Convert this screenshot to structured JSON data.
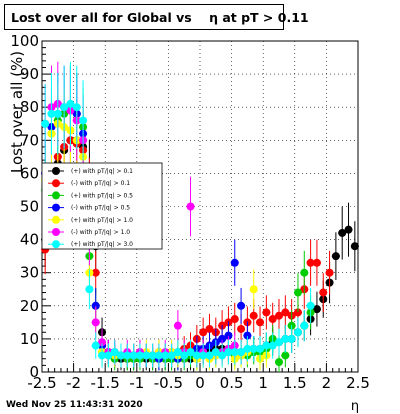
{
  "chart_data": {
    "type": "scatter",
    "title": "Lost over all for Global vs    η at pT > 0.11",
    "ylabel": "Lost over all (%)",
    "xlabel": "η",
    "xlim": [
      -2.5,
      2.5
    ],
    "ylim": [
      0,
      100
    ],
    "x_ticks": [
      "-2.5",
      "-2",
      "-1.5",
      "-1",
      "-0.5",
      "0",
      "0.5",
      "1",
      "1.5",
      "2",
      "2.5"
    ],
    "y_ticks": [
      "0",
      "10",
      "20",
      "30",
      "40",
      "50",
      "60",
      "70",
      "80",
      "90",
      "100"
    ],
    "grid": "on",
    "legend_position": "left-middle",
    "timestamp": "Wed Nov 25 11:43:31 2020",
    "series": [
      {
        "name": "(+) with pT/|q| > 0.1",
        "color": "#000000",
        "x": [
          -2.45,
          -2.35,
          -2.25,
          -2.15,
          -2.05,
          -1.95,
          -1.85,
          -1.75,
          -1.65,
          -1.55,
          -1.45,
          -1.35,
          -1.25,
          -1.15,
          -1.05,
          -0.95,
          -0.85,
          -0.75,
          -0.65,
          -0.55,
          -0.45,
          -0.35,
          -0.25,
          -0.15,
          -0.05,
          0.05,
          0.15,
          0.25,
          0.35,
          0.45,
          0.55,
          0.65,
          0.75,
          0.85,
          0.95,
          1.05,
          1.15,
          1.25,
          1.35,
          1.45,
          1.55,
          1.65,
          1.75,
          1.85,
          1.95,
          2.05,
          2.15,
          2.25,
          2.35,
          2.45
        ],
        "y": [
          40,
          56,
          63,
          67,
          70,
          70,
          68,
          60,
          38,
          12,
          6,
          5,
          4,
          4,
          4,
          5,
          4,
          4,
          4,
          4,
          4,
          4,
          5,
          4,
          5,
          6,
          6,
          7,
          7,
          7,
          6,
          6,
          6,
          7,
          7,
          8,
          9,
          9,
          10,
          10,
          12,
          14,
          16,
          19,
          22,
          27,
          35,
          42,
          43,
          38
        ]
      },
      {
        "name": "(-) with pT/|q| > 0.1",
        "color": "#ff0000",
        "x": [
          -2.45,
          -2.35,
          -2.25,
          -2.15,
          -2.05,
          -1.95,
          -1.85,
          -1.75,
          -1.65,
          -1.55,
          -1.45,
          -1.35,
          -1.25,
          -1.15,
          -1.05,
          -0.95,
          -0.85,
          -0.75,
          -0.65,
          -0.55,
          -0.45,
          -0.35,
          -0.25,
          -0.15,
          -0.05,
          0.05,
          0.15,
          0.25,
          0.35,
          0.45,
          0.55,
          0.65,
          0.75,
          0.85,
          0.95,
          1.05,
          1.15,
          1.25,
          1.35,
          1.45,
          1.55,
          1.65,
          1.75,
          1.85,
          1.95,
          2.05
        ],
        "y": [
          37,
          60,
          65,
          68,
          70,
          69,
          67,
          55,
          30,
          8,
          6,
          6,
          5,
          5,
          5,
          6,
          5,
          5,
          6,
          5,
          6,
          6,
          7,
          8,
          10,
          12,
          13,
          12,
          14,
          15,
          16,
          13,
          15,
          17,
          15,
          18,
          16,
          17,
          18,
          17,
          18,
          25,
          33,
          33,
          24,
          30
        ]
      },
      {
        "name": "(+) with pT/|q| > 0.5",
        "color": "#00cc00",
        "x": [
          -2.45,
          -2.35,
          -2.25,
          -2.15,
          -2.05,
          -1.95,
          -1.85,
          -1.75,
          -1.65,
          -1.55,
          -1.45,
          -1.35,
          -1.25,
          -1.15,
          -1.05,
          -0.95,
          -0.85,
          -0.75,
          -0.65,
          -0.55,
          -0.45,
          -0.35,
          -0.25,
          -0.15,
          -0.05,
          0.05,
          0.15,
          0.25,
          0.35,
          0.45,
          0.55,
          0.65,
          0.75,
          0.85,
          0.95,
          1.05,
          1.15,
          1.25,
          1.35,
          1.45,
          1.55,
          1.65,
          1.75
        ],
        "y": [
          55,
          72,
          76,
          78,
          80,
          78,
          74,
          35,
          20,
          6,
          5,
          4,
          5,
          4,
          4,
          4,
          5,
          4,
          4,
          4,
          4,
          4,
          4,
          5,
          4,
          6,
          5,
          5,
          6,
          6,
          5,
          5,
          5,
          6,
          6,
          7,
          10,
          3,
          5,
          14,
          24,
          30,
          18
        ]
      },
      {
        "name": "(-) with pT/|q| > 0.5",
        "color": "#0000ff",
        "x": [
          -2.45,
          -2.35,
          -2.25,
          -2.15,
          -2.05,
          -1.95,
          -1.85,
          -1.75,
          -1.65,
          -1.55,
          -1.45,
          -1.35,
          -1.25,
          -1.15,
          -1.05,
          -0.95,
          -0.85,
          -0.75,
          -0.65,
          -0.55,
          -0.45,
          -0.35,
          -0.25,
          -0.15,
          -0.05,
          0.05,
          0.15,
          0.25,
          0.35,
          0.45,
          0.55,
          0.65,
          0.75
        ],
        "y": [
          60,
          74,
          78,
          80,
          80,
          78,
          72,
          45,
          20,
          8,
          6,
          5,
          5,
          5,
          5,
          5,
          5,
          5,
          4,
          5,
          5,
          4,
          5,
          6,
          7,
          7,
          8,
          9,
          10,
          11,
          33,
          20,
          11
        ]
      },
      {
        "name": "(+) with pT/|q| > 1.0",
        "color": "#ffff00",
        "x": [
          -2.45,
          -2.35,
          -2.25,
          -2.15,
          -2.05,
          -1.95,
          -1.85,
          -1.75,
          -1.65,
          -1.55,
          -1.45,
          -1.35,
          -1.25,
          -1.15,
          -1.05,
          -0.95,
          -0.85,
          -0.75,
          -0.65,
          -0.55,
          -0.45,
          -0.35,
          -0.25,
          -0.15,
          -0.05,
          0.05,
          0.15,
          0.25,
          0.35,
          0.45,
          0.55,
          0.65,
          0.75,
          0.85,
          0.95,
          1.05
        ],
        "y": [
          58,
          72,
          75,
          74,
          73,
          70,
          65,
          30,
          15,
          6,
          5,
          5,
          5,
          5,
          5,
          5,
          6,
          5,
          6,
          5,
          6,
          5,
          5,
          6,
          4,
          5,
          4,
          5,
          5,
          6,
          4,
          5,
          6,
          25,
          4,
          5
        ]
      },
      {
        "name": "(-) with pT/|q| > 1.0",
        "color": "#ff00ff",
        "x": [
          -2.45,
          -2.35,
          -2.25,
          -2.15,
          -2.05,
          -1.95,
          -1.85,
          -1.75,
          -1.65,
          -1.55,
          -1.45,
          -1.35,
          -1.25,
          -1.15,
          -1.05,
          -0.95,
          -0.85,
          -0.75,
          -0.65,
          -0.55,
          -0.45,
          -0.35,
          -0.25,
          -0.15,
          -0.05,
          0.05,
          0.15,
          0.25,
          0.35,
          0.45,
          0.55,
          0.65
        ],
        "y": [
          75,
          80,
          81,
          80,
          79,
          76,
          70,
          40,
          15,
          9,
          6,
          6,
          5,
          6,
          5,
          6,
          5,
          5,
          5,
          6,
          5,
          14,
          6,
          50,
          5,
          6,
          5,
          6,
          6,
          7,
          8,
          6
        ]
      },
      {
        "name": "(+) with pT/|q| > 3.0",
        "color": "#00ffff",
        "x": [
          -2.45,
          -2.35,
          -2.25,
          -2.15,
          -2.05,
          -1.95,
          -1.85,
          -1.75,
          -1.65,
          -1.55,
          -1.45,
          -1.35,
          -1.25,
          -1.15,
          -1.05,
          -0.95,
          -0.85,
          -0.75,
          -0.65,
          -0.55,
          -0.45,
          -0.35,
          -0.25,
          -0.15,
          -0.05,
          0.05,
          0.15,
          0.25,
          0.35,
          0.45,
          0.55,
          0.65,
          0.75,
          0.85,
          0.95,
          1.05,
          1.15,
          1.25,
          1.35,
          1.45,
          1.55,
          1.65,
          1.75
        ],
        "y": [
          75,
          78,
          78,
          80,
          81,
          80,
          76,
          25,
          8,
          5,
          5,
          6,
          5,
          5,
          5,
          5,
          5,
          5,
          5,
          5,
          5,
          6,
          5,
          6,
          5,
          5,
          5,
          6,
          5,
          6,
          6,
          6,
          7,
          7,
          7,
          8,
          8,
          9,
          10,
          10,
          12,
          14,
          20
        ]
      }
    ]
  }
}
